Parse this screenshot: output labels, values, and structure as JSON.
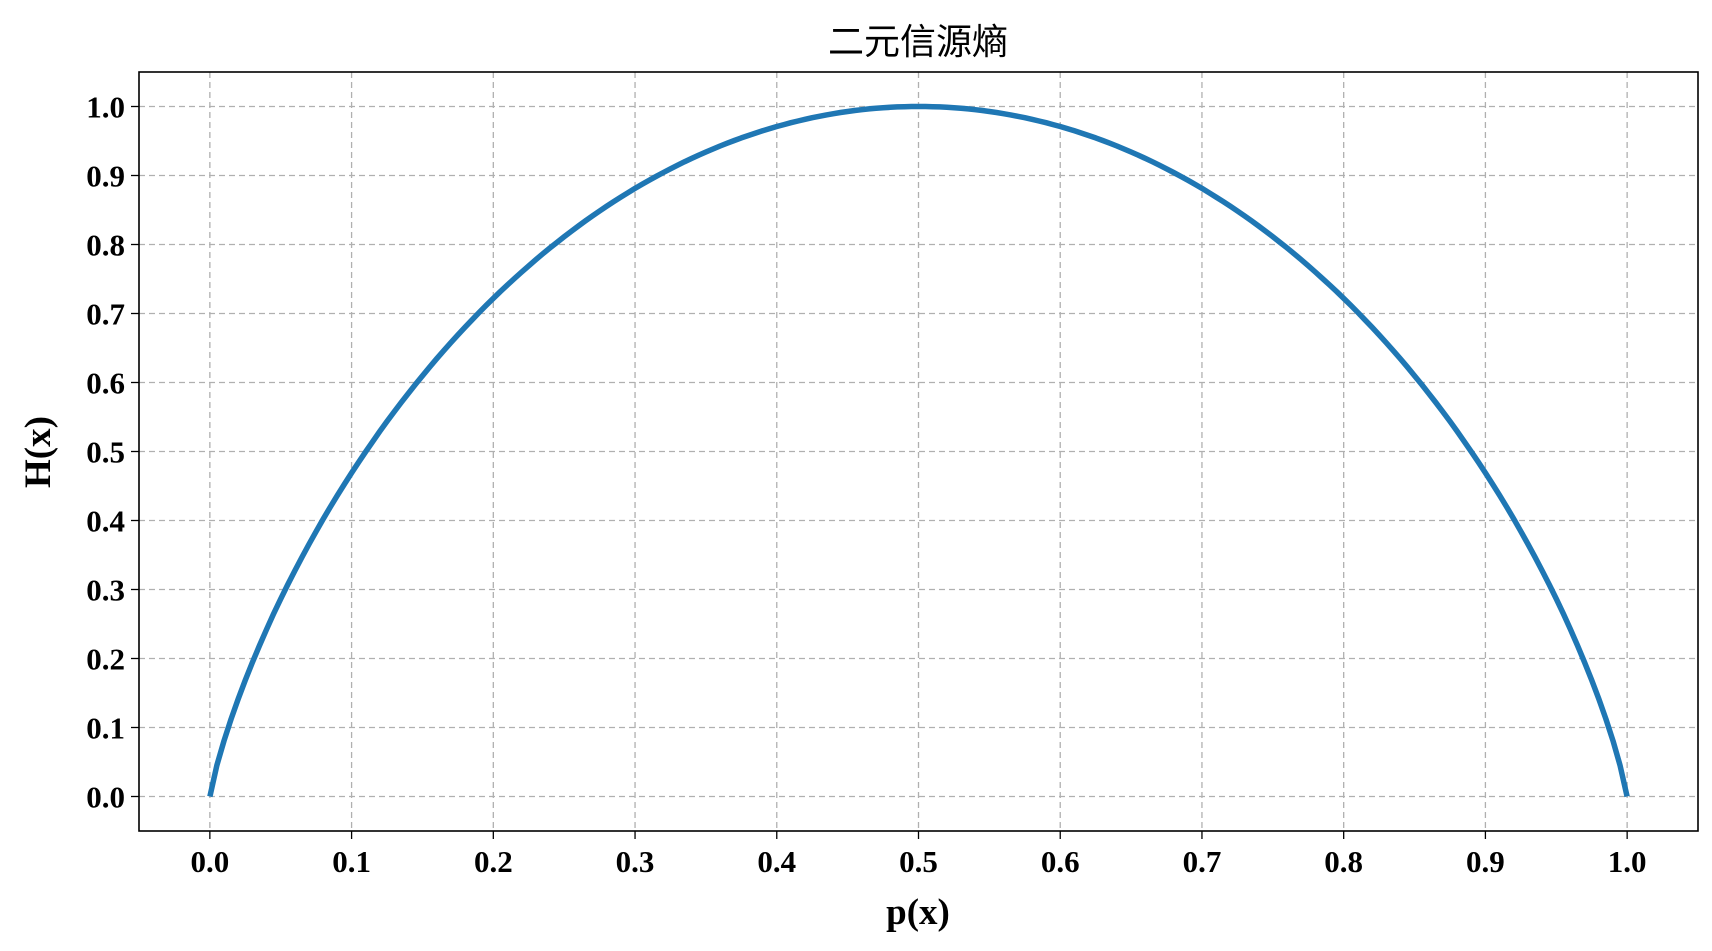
{
  "chart_data": {
    "type": "line",
    "title": "二元信源熵",
    "xlabel": "p(x)",
    "ylabel": "H(x)",
    "xlim": [
      -0.05,
      1.05
    ],
    "ylim": [
      -0.05,
      1.05
    ],
    "grid": true,
    "xticks": [
      "0.0",
      "0.1",
      "0.2",
      "0.3",
      "0.4",
      "0.5",
      "0.6",
      "0.7",
      "0.8",
      "0.9",
      "1.0"
    ],
    "yticks": [
      "0.0",
      "0.1",
      "0.2",
      "0.3",
      "0.4",
      "0.5",
      "0.6",
      "0.7",
      "0.8",
      "0.9",
      "1.0"
    ],
    "colors": {
      "line": "#1f77b4",
      "grid": "#b0b0b0"
    },
    "series": [
      {
        "name": "H(x)",
        "x": [
          0,
          0.02,
          0.04,
          0.06,
          0.08,
          0.1,
          0.12,
          0.14,
          0.16,
          0.18,
          0.2,
          0.22,
          0.24,
          0.26,
          0.28,
          0.3,
          0.32,
          0.34,
          0.36,
          0.38,
          0.4,
          0.42,
          0.44,
          0.46,
          0.48,
          0.5,
          0.52,
          0.54,
          0.56,
          0.58,
          0.6,
          0.62,
          0.64,
          0.66,
          0.68,
          0.7,
          0.72,
          0.74,
          0.76,
          0.78,
          0.8,
          0.82,
          0.84,
          0.86,
          0.88,
          0.9,
          0.92,
          0.94,
          0.96,
          0.98,
          1.0
        ],
        "y": [
          0,
          0.1414,
          0.2423,
          0.3274,
          0.4022,
          0.469,
          0.5294,
          0.5842,
          0.6343,
          0.6801,
          0.7219,
          0.7602,
          0.795,
          0.8267,
          0.8555,
          0.8813,
          0.9044,
          0.9248,
          0.9427,
          0.958,
          0.971,
          0.9815,
          0.9896,
          0.9954,
          0.9988,
          1.0,
          0.9988,
          0.9954,
          0.9896,
          0.9815,
          0.971,
          0.958,
          0.9427,
          0.9248,
          0.9044,
          0.8813,
          0.8555,
          0.8267,
          0.795,
          0.7602,
          0.7219,
          0.6801,
          0.6343,
          0.5842,
          0.5294,
          0.469,
          0.4022,
          0.3274,
          0.2423,
          0.1414,
          0
        ]
      }
    ]
  }
}
